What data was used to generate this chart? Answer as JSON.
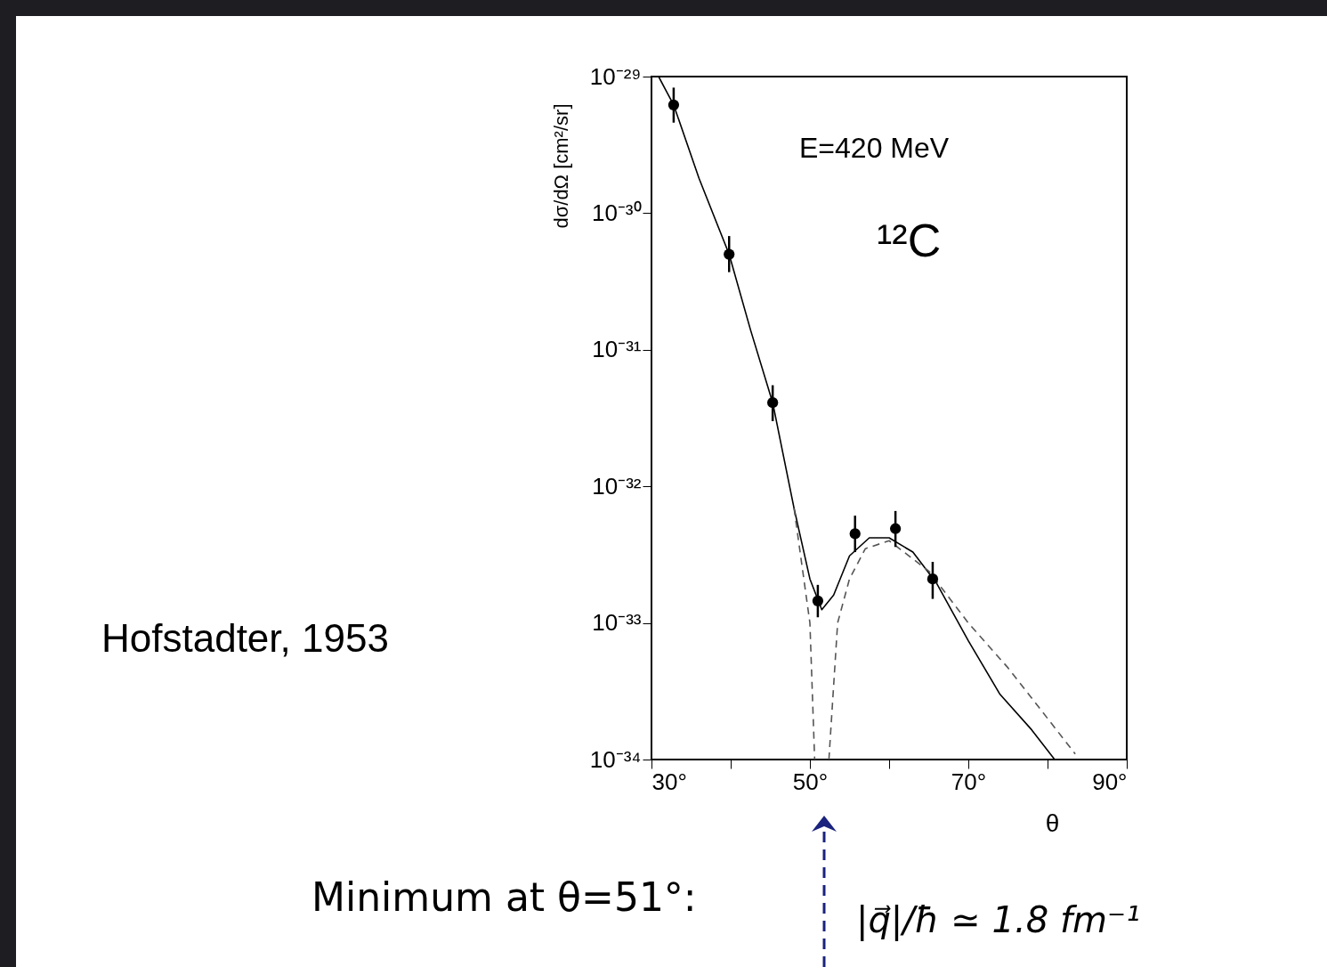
{
  "chart_data": {
    "type": "scatter",
    "xlabel": "θ",
    "ylabel": "dσ/dΩ [cm²/sr]",
    "log": true,
    "grid": false,
    "xlim": [
      30,
      90
    ],
    "xticks": [
      {
        "value": 30,
        "label": "30°"
      },
      {
        "value": 40,
        "label": null
      },
      {
        "value": 50,
        "label": "50°"
      },
      {
        "value": 60,
        "label": null
      },
      {
        "value": 70,
        "label": "70°"
      },
      {
        "value": 80,
        "label": null
      },
      {
        "value": 90,
        "label": "90°"
      }
    ],
    "ylim": [
      1e-34,
      1e-29
    ],
    "yticks": [
      {
        "value": 1e-34,
        "label": "10⁻³⁴"
      },
      {
        "value": 1e-33,
        "label": "10⁻³³"
      },
      {
        "value": 1e-32,
        "label": "10⁻³²"
      },
      {
        "value": 1e-31,
        "label": "10⁻³¹"
      },
      {
        "value": 1e-30,
        "label": "10⁻³⁰"
      },
      {
        "value": 1e-29,
        "label": "10⁻²⁹"
      }
    ],
    "series": [
      {
        "color": "#000000",
        "marker": "circle",
        "x": [
          32.8,
          39.8,
          45.3,
          51.0,
          55.7,
          60.8,
          65.5
        ],
        "values": [
          6.2e-30,
          5e-31,
          4.1e-32,
          1.45e-33,
          4.5e-33,
          4.9e-33,
          2.1e-33
        ],
        "errors": [
          [
            4.6e-30,
            8.3e-30
          ],
          [
            3.7e-31,
            6.8e-31
          ],
          [
            3e-32,
            5.5e-32
          ],
          [
            1.1e-33,
            1.9e-33
          ],
          [
            3.3e-33,
            6.1e-33
          ],
          [
            3.6e-33,
            6.6e-33
          ],
          [
            1.5e-33,
            2.8e-33
          ]
        ]
      },
      {
        "type": "line",
        "color": "#000000",
        "line_style": "solid",
        "x": [
          30.9,
          32.8,
          36,
          39.8,
          42.5,
          45.3,
          48,
          50,
          51.5,
          53,
          55,
          57.5,
          60,
          63,
          66,
          70,
          74,
          78,
          80.9
        ],
        "values": [
          1e-29,
          6.2e-30,
          1.8e-30,
          5e-31,
          1.4e-31,
          4.1e-32,
          6.9e-33,
          2.1e-33,
          1.25e-33,
          1.6e-33,
          3.1e-33,
          4.2e-33,
          4.2e-33,
          3.3e-33,
          1.95e-33,
          7.4e-34,
          3e-34,
          1.65e-34,
          1e-34
        ]
      },
      {
        "type": "line",
        "color": "#555555",
        "line_style": "dashed",
        "x": [
          48,
          50,
          50.6,
          51.5,
          52.4,
          53.5,
          55,
          57,
          60,
          65,
          70,
          75,
          80,
          83.5
        ],
        "values": [
          6.9e-33,
          1e-33,
          1e-34,
          null,
          1e-34,
          1e-33,
          2.1e-33,
          3.5e-33,
          4e-33,
          2.4e-33,
          1e-33,
          4.7e-34,
          2e-34,
          1.1e-34
        ]
      }
    ],
    "annotations": [
      "E=420 MeV",
      "¹²C",
      "Hofstadter, 1953",
      "Minimum at θ=51°:",
      "|q⃗|/ħ ≃ 1.8 fm⁻¹"
    ]
  }
}
